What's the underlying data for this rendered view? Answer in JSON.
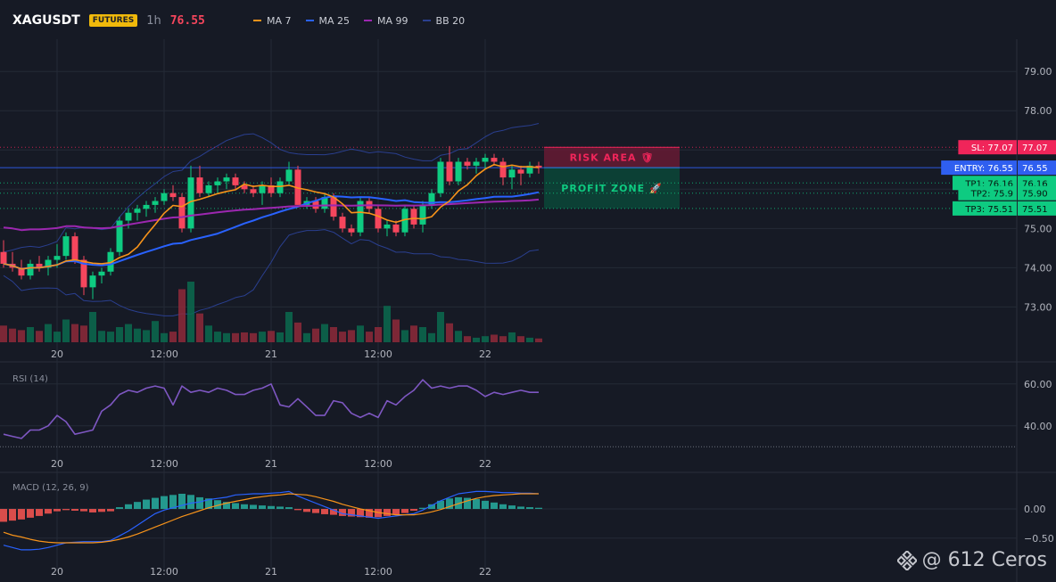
{
  "header": {
    "symbol": "XAGUSDT",
    "badge": "FUTURES",
    "interval": "1h",
    "last_price": "76.55"
  },
  "legend": [
    {
      "label": "MA 7",
      "color": "#f7931a"
    },
    {
      "label": "MA 25",
      "color": "#2962ff"
    },
    {
      "label": "MA 99",
      "color": "#9c27b0"
    },
    {
      "label": "BB 20",
      "color": "#2a3f8f"
    }
  ],
  "watermark": "@ 612 Ceros",
  "colors": {
    "up": "#0ecb81",
    "down": "#f6465d",
    "bg": "#161a25",
    "grid": "#242a36"
  },
  "chart_data": [
    {
      "type": "candlestick",
      "panel": "price",
      "x_tick_labels": [
        "20",
        "12:00",
        "21",
        "12:00",
        "22"
      ],
      "x_tick_index": [
        6,
        18,
        30,
        42,
        54
      ],
      "ylim": [
        72.1,
        79.8
      ],
      "y_ticks": [
        79.0,
        78.0,
        77.0,
        76.0,
        75.0,
        74.0,
        73.0
      ],
      "y_tick_labels": [
        "79.00",
        "78.00",
        "77.00",
        "76.00",
        "75.00",
        "74.00",
        "73.00"
      ],
      "ohlc": [
        [
          74.4,
          74.7,
          74.0,
          74.1
        ],
        [
          74.1,
          74.4,
          73.9,
          74.0
        ],
        [
          74.0,
          74.2,
          73.7,
          73.8
        ],
        [
          73.8,
          74.2,
          73.7,
          74.1
        ],
        [
          74.1,
          74.3,
          73.9,
          74.0
        ],
        [
          74.0,
          74.3,
          73.8,
          74.2
        ],
        [
          74.2,
          74.6,
          74.0,
          74.3
        ],
        [
          74.3,
          74.9,
          74.2,
          74.8
        ],
        [
          74.8,
          74.9,
          74.1,
          74.2
        ],
        [
          74.2,
          74.3,
          73.3,
          73.5
        ],
        [
          73.5,
          73.9,
          73.2,
          73.8
        ],
        [
          73.8,
          74.0,
          73.6,
          73.9
        ],
        [
          73.9,
          74.5,
          73.8,
          74.4
        ],
        [
          74.4,
          75.3,
          74.3,
          75.2
        ],
        [
          75.2,
          75.5,
          75.0,
          75.4
        ],
        [
          75.4,
          75.6,
          75.2,
          75.5
        ],
        [
          75.5,
          75.7,
          75.3,
          75.6
        ],
        [
          75.6,
          75.8,
          75.4,
          75.7
        ],
        [
          75.7,
          76.0,
          75.6,
          75.9
        ],
        [
          75.9,
          76.1,
          75.7,
          75.8
        ],
        [
          75.8,
          75.9,
          74.9,
          75.0
        ],
        [
          75.0,
          76.6,
          74.9,
          76.3
        ],
        [
          76.3,
          76.6,
          75.8,
          75.9
        ],
        [
          75.9,
          76.2,
          75.8,
          76.1
        ],
        [
          76.1,
          76.3,
          75.9,
          76.2
        ],
        [
          76.2,
          76.4,
          76.0,
          76.3
        ],
        [
          76.3,
          76.4,
          76.0,
          76.1
        ],
        [
          76.1,
          76.2,
          75.9,
          76.0
        ],
        [
          76.0,
          76.1,
          75.8,
          75.9
        ],
        [
          75.9,
          76.2,
          75.6,
          76.1
        ],
        [
          76.1,
          76.3,
          75.8,
          75.9
        ],
        [
          75.9,
          76.3,
          75.8,
          76.2
        ],
        [
          76.2,
          76.7,
          76.1,
          76.5
        ],
        [
          76.5,
          76.6,
          75.6,
          75.6
        ],
        [
          75.6,
          75.8,
          75.5,
          75.7
        ],
        [
          75.7,
          75.8,
          75.4,
          75.5
        ],
        [
          75.5,
          75.9,
          75.4,
          75.8
        ],
        [
          75.8,
          75.9,
          75.2,
          75.3
        ],
        [
          75.3,
          75.4,
          74.9,
          75.0
        ],
        [
          75.0,
          75.1,
          74.8,
          74.9
        ],
        [
          74.9,
          75.8,
          74.8,
          75.7
        ],
        [
          75.7,
          75.8,
          75.4,
          75.5
        ],
        [
          75.5,
          75.6,
          74.9,
          75.0
        ],
        [
          75.0,
          75.2,
          74.8,
          75.1
        ],
        [
          75.1,
          75.2,
          74.8,
          74.9
        ],
        [
          74.9,
          75.6,
          74.8,
          75.5
        ],
        [
          75.5,
          75.6,
          75.0,
          75.1
        ],
        [
          75.1,
          75.7,
          74.9,
          75.6
        ],
        [
          75.6,
          76.0,
          75.5,
          75.9
        ],
        [
          75.9,
          76.8,
          75.8,
          76.7
        ],
        [
          76.7,
          77.1,
          76.1,
          76.2
        ],
        [
          76.2,
          76.8,
          76.1,
          76.7
        ],
        [
          76.7,
          76.8,
          76.5,
          76.6
        ],
        [
          76.6,
          76.8,
          76.4,
          76.7
        ],
        [
          76.7,
          76.9,
          76.5,
          76.8
        ],
        [
          76.8,
          76.9,
          76.6,
          76.7
        ],
        [
          76.7,
          76.8,
          76.1,
          76.3
        ],
        [
          76.3,
          76.6,
          76.0,
          76.5
        ],
        [
          76.5,
          76.6,
          76.1,
          76.4
        ],
        [
          76.4,
          76.7,
          76.3,
          76.6
        ],
        [
          76.6,
          76.7,
          76.4,
          76.55
        ]
      ],
      "volume": [
        22,
        18,
        16,
        20,
        15,
        24,
        14,
        30,
        24,
        22,
        40,
        15,
        14,
        20,
        24,
        18,
        16,
        28,
        12,
        14,
        70,
        80,
        38,
        22,
        14,
        12,
        12,
        13,
        12,
        14,
        15,
        13,
        40,
        26,
        12,
        18,
        24,
        20,
        14,
        16,
        22,
        14,
        20,
        48,
        30,
        16,
        22,
        20,
        12,
        40,
        25,
        15,
        8,
        6,
        8,
        10,
        8,
        13,
        8,
        6,
        5
      ],
      "ma7_label": "MA 7",
      "ma25_label": "MA 25",
      "ma99_label": "MA 99",
      "bb_label": "BB 20",
      "levels": [
        {
          "label": "SL: 77.07",
          "value": 77.07,
          "value_text": "77.07",
          "color": "#f0255a",
          "style": "dotted"
        },
        {
          "label": "ENTRY: 76.55",
          "value": 76.55,
          "value_text": "76.55",
          "color": "#2f5ff0",
          "style": "solid"
        },
        {
          "label": "TP1: 76.16",
          "value": 76.16,
          "value_text": "76.16",
          "color": "#0ecb81",
          "style": "dotted"
        },
        {
          "label": "TP2: 75.9",
          "value": 75.9,
          "value_text": "75.90",
          "color": "#0ecb81",
          "style": "dotted"
        },
        {
          "label": "TP3: 75.51",
          "value": 75.51,
          "value_text": "75.51",
          "color": "#0ecb81",
          "style": "dotted"
        }
      ],
      "zones": [
        {
          "label": "RISK AREA 🛡",
          "from": 77.07,
          "to": 76.55,
          "fill": "#6b1a34",
          "text_color": "#f0255a"
        },
        {
          "label": "PROFIT ZONE 🚀",
          "from": 76.55,
          "to": 75.51,
          "fill": "#0a4a3a",
          "text_color": "#0ecb81"
        }
      ]
    },
    {
      "type": "line",
      "panel": "rsi",
      "title": "RSI (14)",
      "ylim": [
        28,
        68
      ],
      "y_ticks": [
        60,
        40
      ],
      "y_tick_labels": [
        "60.00",
        "40.00"
      ],
      "reference": 30,
      "x_tick_labels": [
        "20",
        "12:00",
        "21",
        "12:00",
        "22"
      ],
      "values": [
        36,
        35,
        34,
        38,
        38,
        40,
        45,
        42,
        36,
        37,
        38,
        47,
        50,
        55,
        57,
        56,
        58,
        59,
        58,
        50,
        59,
        56,
        57,
        56,
        58,
        57,
        55,
        55,
        57,
        58,
        60,
        50,
        49,
        53,
        49,
        45,
        45,
        52,
        51,
        46,
        44,
        46,
        44,
        52,
        50,
        54,
        57,
        62,
        58,
        59,
        58,
        59,
        59,
        57,
        54,
        56,
        55,
        56,
        57,
        56,
        56
      ],
      "color": "#7e57c2"
    },
    {
      "type": "bar-line",
      "panel": "macd",
      "title": "MACD (12, 26, 9)",
      "ylim": [
        -0.9,
        0.55
      ],
      "y_ticks": [
        0.0,
        -0.5
      ],
      "y_tick_labels": [
        "0.00",
        "−0.50"
      ],
      "x_tick_labels": [
        "20",
        "12:00",
        "21",
        "12:00",
        "22"
      ],
      "histogram": [
        -0.22,
        -0.2,
        -0.18,
        -0.15,
        -0.12,
        -0.08,
        -0.04,
        -0.02,
        -0.03,
        -0.04,
        -0.06,
        -0.05,
        -0.04,
        0.03,
        0.08,
        0.12,
        0.16,
        0.19,
        0.22,
        0.24,
        0.26,
        0.24,
        0.2,
        0.18,
        0.15,
        0.12,
        0.1,
        0.08,
        0.07,
        0.06,
        0.05,
        0.04,
        0.03,
        -0.02,
        -0.05,
        -0.07,
        -0.09,
        -0.1,
        -0.12,
        -0.13,
        -0.14,
        -0.15,
        -0.14,
        -0.12,
        -0.1,
        -0.07,
        -0.03,
        0.02,
        0.08,
        0.14,
        0.18,
        0.2,
        0.19,
        0.17,
        0.14,
        0.11,
        0.08,
        0.06,
        0.04,
        0.03,
        0.02
      ],
      "macd": [
        -0.62,
        -0.66,
        -0.7,
        -0.7,
        -0.69,
        -0.66,
        -0.62,
        -0.58,
        -0.57,
        -0.56,
        -0.56,
        -0.56,
        -0.54,
        -0.46,
        -0.38,
        -0.28,
        -0.18,
        -0.08,
        -0.02,
        0.02,
        0.06,
        0.1,
        0.12,
        0.16,
        0.18,
        0.2,
        0.24,
        0.25,
        0.26,
        0.26,
        0.27,
        0.28,
        0.3,
        0.22,
        0.16,
        0.1,
        0.04,
        -0.02,
        -0.08,
        -0.1,
        -0.12,
        -0.14,
        -0.16,
        -0.14,
        -0.12,
        -0.1,
        -0.08,
        -0.02,
        0.06,
        0.14,
        0.2,
        0.26,
        0.28,
        0.3,
        0.3,
        0.29,
        0.28,
        0.28,
        0.27,
        0.27,
        0.26
      ],
      "signal": [
        -0.4,
        -0.45,
        -0.48,
        -0.52,
        -0.55,
        -0.57,
        -0.58,
        -0.58,
        -0.58,
        -0.58,
        -0.58,
        -0.57,
        -0.55,
        -0.52,
        -0.48,
        -0.43,
        -0.37,
        -0.31,
        -0.25,
        -0.19,
        -0.13,
        -0.08,
        -0.03,
        0.02,
        0.06,
        0.1,
        0.13,
        0.16,
        0.19,
        0.21,
        0.23,
        0.24,
        0.26,
        0.25,
        0.24,
        0.21,
        0.17,
        0.13,
        0.08,
        0.04,
        0.0,
        -0.03,
        -0.06,
        -0.08,
        -0.1,
        -0.1,
        -0.1,
        -0.08,
        -0.05,
        -0.01,
        0.04,
        0.09,
        0.14,
        0.18,
        0.21,
        0.23,
        0.24,
        0.25,
        0.26,
        0.26,
        0.26
      ],
      "macd_color": "#2962ff",
      "signal_color": "#f7931a"
    }
  ]
}
